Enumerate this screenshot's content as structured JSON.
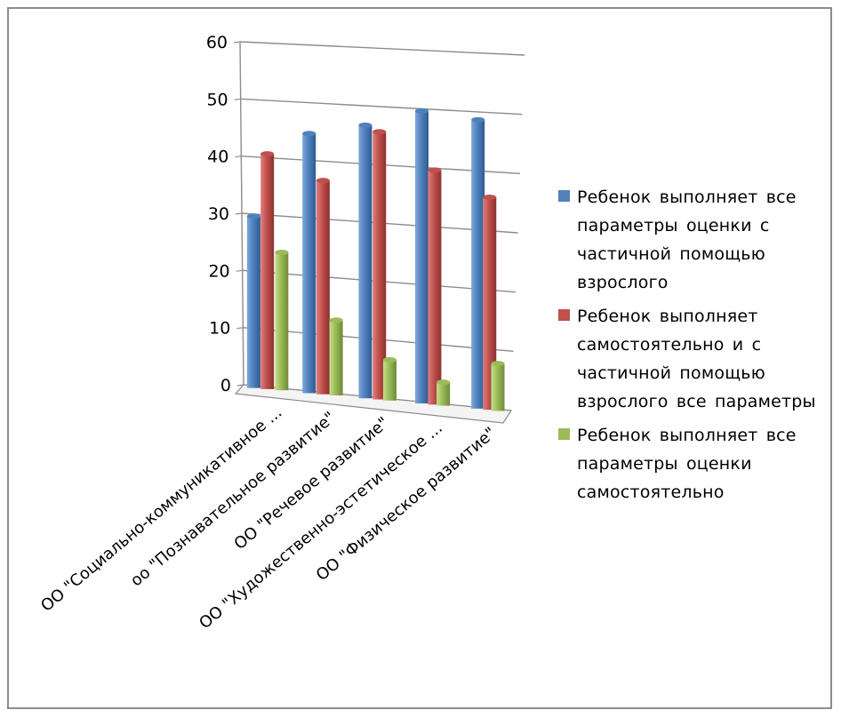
{
  "chart_data": {
    "type": "bar",
    "style": "3d-clustered-column",
    "title": "",
    "xlabel": "",
    "ylabel": "",
    "ylim": [
      0,
      60
    ],
    "yticks": [
      0,
      10,
      20,
      30,
      40,
      50,
      60
    ],
    "grid": true,
    "legend_position": "right",
    "categories": [
      "ОО \"Социально-коммуникативное ...",
      "оо \"Познавательное развитие\"",
      "ОО \"Речевое развитие\"",
      "ОО \"Художественно-эстетическое ...",
      "ОО \"Физическое развитие\""
    ],
    "series": [
      {
        "name": "Ребенок выполняет все параметры оценки с частичной помощью взрослого",
        "color": "#4f81bd",
        "values": [
          30,
          45,
          47,
          50,
          49
        ]
      },
      {
        "name": "Ребенок выполняет самостоятельно и с частичной помощью взрослого все параметры",
        "color": "#c0504d",
        "values": [
          41,
          37,
          46,
          40,
          36
        ]
      },
      {
        "name": "Ребенок выполняет все параметры оценки самостоятельно",
        "color": "#9bbb59",
        "values": [
          24,
          13,
          7,
          4,
          8
        ]
      }
    ]
  }
}
